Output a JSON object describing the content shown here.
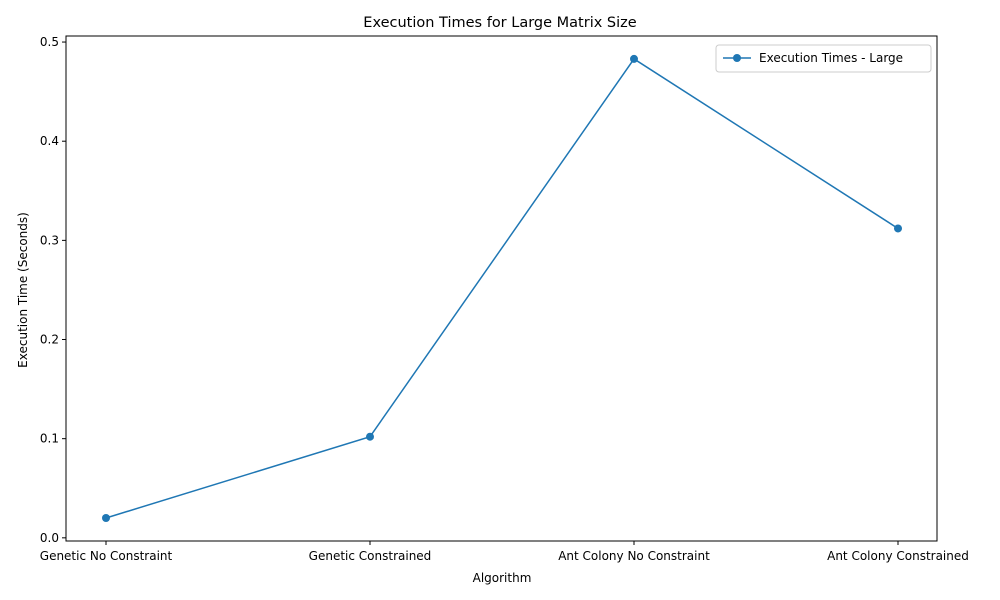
{
  "chart_data": {
    "type": "line",
    "title": "Execution Times for Large Matrix Size",
    "xlabel": "Algorithm",
    "ylabel": "Execution Time (Seconds)",
    "categories": [
      "Genetic No Constraint",
      "Genetic Constrained",
      "Ant Colony No Constraint",
      "Ant Colony Constrained"
    ],
    "series": [
      {
        "name": "Execution Times - Large",
        "values": [
          0.02,
          0.102,
          0.483,
          0.312
        ],
        "color": "#1f77b4",
        "marker": "circle"
      }
    ],
    "ylim": [
      0.0,
      0.5
    ],
    "yticks": [
      0.0,
      0.1,
      0.2,
      0.3,
      0.4,
      0.5
    ],
    "ytick_labels": [
      "0.0",
      "0.1",
      "0.2",
      "0.3",
      "0.4",
      "0.5"
    ],
    "grid": false,
    "legend_position": "top-right"
  }
}
